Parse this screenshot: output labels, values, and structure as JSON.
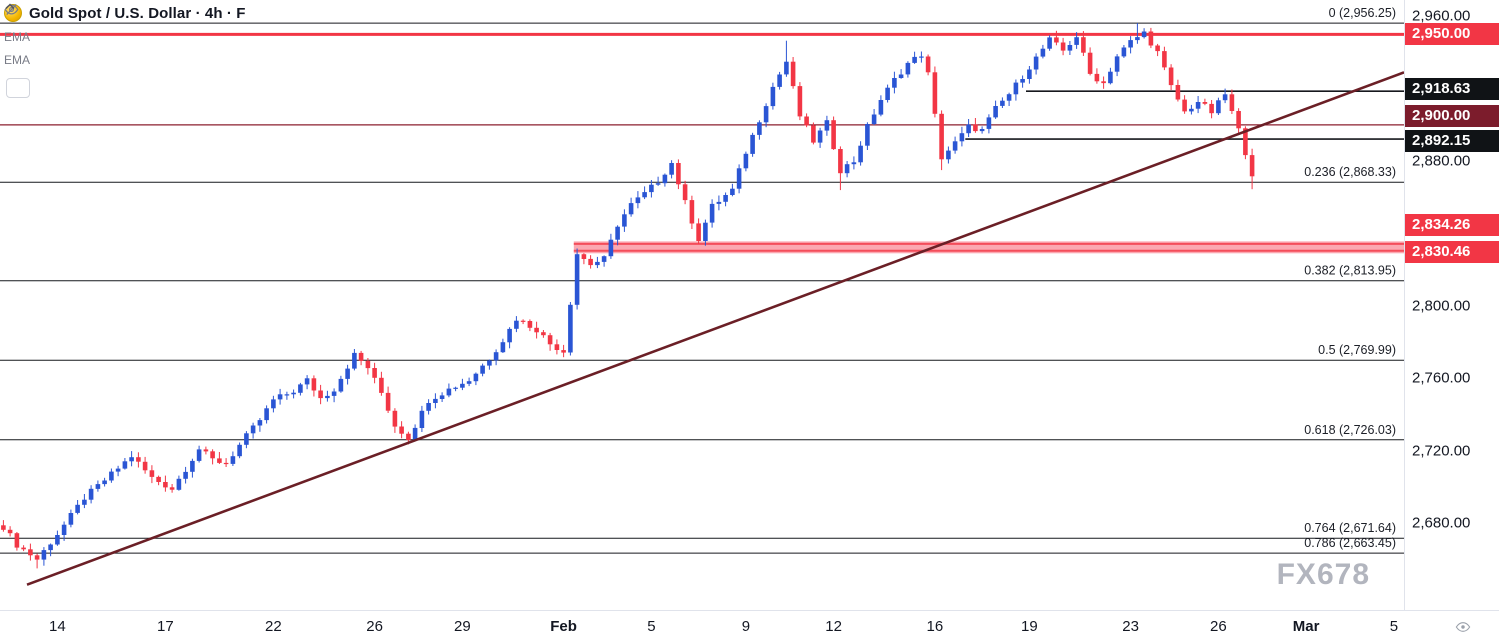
{
  "header": {
    "symbol_title": "Gold Spot / U.S. Dollar · 4h · F"
  },
  "legend": {
    "indicators": [
      {
        "label": "EMA",
        "hidden": true
      },
      {
        "label": "EMA",
        "hidden": true
      }
    ]
  },
  "watermark": "FX678",
  "colors": {
    "up": "#2a55d4",
    "down": "#f23645",
    "red_line": "#f23645",
    "maroon_line": "#8c1f2f",
    "black_line": "#16181d",
    "trend_line": "#6b1f26",
    "zone_fill": "rgba(247,82,99,0.5)",
    "zone_edge": "rgba(242,54,69,0.8)",
    "badge_red": "#f23645",
    "badge_black": "#101316",
    "badge_maroon": "#7c1c2c",
    "axis_text": "#131722",
    "muted": "#787b86"
  },
  "chart_data": {
    "type": "candlestick",
    "title": "Gold Spot / U.S. Dollar",
    "timeframe": "4h",
    "ylim": [
      2632,
      2969
    ],
    "x_slots": 208,
    "candle_count": 186,
    "x_axis": {
      "ticks": [
        {
          "label": "14",
          "slot": 8
        },
        {
          "label": "17",
          "slot": 24
        },
        {
          "label": "22",
          "slot": 40
        },
        {
          "label": "26",
          "slot": 55
        },
        {
          "label": "29",
          "slot": 68
        },
        {
          "label": "Feb",
          "slot": 83,
          "bold": true
        },
        {
          "label": "5",
          "slot": 96
        },
        {
          "label": "9",
          "slot": 110
        },
        {
          "label": "12",
          "slot": 123
        },
        {
          "label": "16",
          "slot": 138
        },
        {
          "label": "19",
          "slot": 152
        },
        {
          "label": "23",
          "slot": 167
        },
        {
          "label": "26",
          "slot": 180
        },
        {
          "label": "Mar",
          "slot": 193,
          "bold": true
        },
        {
          "label": "5",
          "slot": 206
        }
      ]
    },
    "y_axis": {
      "ticks": [
        {
          "label": "2,960.00",
          "price": 2960
        },
        {
          "label": "2,880.00",
          "price": 2880
        },
        {
          "label": "2,800.00",
          "price": 2800
        },
        {
          "label": "2,760.00",
          "price": 2760
        },
        {
          "label": "2,720.00",
          "price": 2720
        },
        {
          "label": "2,680.00",
          "price": 2680
        }
      ]
    },
    "price_badges": [
      {
        "label": "2,950.00",
        "bg_key": "badge_red",
        "y": 34
      },
      {
        "label": "2,918.63",
        "bg_key": "badge_black",
        "y": 89
      },
      {
        "label": "2,900.00",
        "bg_key": "badge_maroon",
        "y": 116
      },
      {
        "label": "2,892.15",
        "bg_key": "badge_black",
        "y": 141
      },
      {
        "label": "2,834.26",
        "bg_key": "badge_red",
        "y": 225
      },
      {
        "label": "2,830.46",
        "bg_key": "badge_red",
        "y": 252
      }
    ],
    "swings": [
      [
        0,
        2678
      ],
      [
        2,
        2668
      ],
      [
        5,
        2660
      ],
      [
        8,
        2674
      ],
      [
        12,
        2694
      ],
      [
        16,
        2707
      ],
      [
        19,
        2717
      ],
      [
        22,
        2705
      ],
      [
        25,
        2699
      ],
      [
        29,
        2721
      ],
      [
        31,
        2715
      ],
      [
        33,
        2713
      ],
      [
        36,
        2728
      ],
      [
        38,
        2737
      ],
      [
        40,
        2748
      ],
      [
        43,
        2753
      ],
      [
        45,
        2759
      ],
      [
        47,
        2749
      ],
      [
        49,
        2754
      ],
      [
        52,
        2773
      ],
      [
        54,
        2766
      ],
      [
        56,
        2752
      ],
      [
        58,
        2734
      ],
      [
        60,
        2727
      ],
      [
        63,
        2748
      ],
      [
        66,
        2754
      ],
      [
        69,
        2759
      ],
      [
        72,
        2771
      ],
      [
        74,
        2781
      ],
      [
        76,
        2793
      ],
      [
        79,
        2787
      ],
      [
        81,
        2779
      ],
      [
        83,
        2775
      ],
      [
        85,
        2829
      ],
      [
        87,
        2823
      ],
      [
        89,
        2826
      ],
      [
        91,
        2845
      ],
      [
        93,
        2856
      ],
      [
        95,
        2862
      ],
      [
        97,
        2869
      ],
      [
        99,
        2879
      ],
      [
        101,
        2857
      ],
      [
        103,
        2837
      ],
      [
        105,
        2855
      ],
      [
        108,
        2864
      ],
      [
        110,
        2885
      ],
      [
        112,
        2903
      ],
      [
        114,
        2921
      ],
      [
        116,
        2935
      ],
      [
        118,
        2905
      ],
      [
        120,
        2891
      ],
      [
        122,
        2901
      ],
      [
        124,
        2875
      ],
      [
        126,
        2880
      ],
      [
        128,
        2899
      ],
      [
        130,
        2914
      ],
      [
        132,
        2925
      ],
      [
        134,
        2934
      ],
      [
        136,
        2939
      ],
      [
        137,
        2928
      ],
      [
        139,
        2882
      ],
      [
        141,
        2890
      ],
      [
        143,
        2899
      ],
      [
        145,
        2897
      ],
      [
        147,
        2909
      ],
      [
        149,
        2917
      ],
      [
        151,
        2927
      ],
      [
        153,
        2937
      ],
      [
        155,
        2947
      ],
      [
        157,
        2941
      ],
      [
        159,
        2949
      ],
      [
        161,
        2928
      ],
      [
        163,
        2923
      ],
      [
        165,
        2938
      ],
      [
        167,
        2946
      ],
      [
        169,
        2951
      ],
      [
        171,
        2940
      ],
      [
        173,
        2921
      ],
      [
        175,
        2907
      ],
      [
        177,
        2913
      ],
      [
        179,
        2907
      ],
      [
        181,
        2917
      ],
      [
        183,
        2897
      ],
      [
        185,
        2873
      ]
    ],
    "extremes": [
      {
        "slot": 5,
        "low": 2655
      },
      {
        "slot": 60,
        "low": 2723.5
      },
      {
        "slot": 116,
        "high": 2946.5
      },
      {
        "slot": 124,
        "low": 2864
      },
      {
        "slot": 139,
        "low": 2875
      },
      {
        "slot": 156,
        "high": 2952
      },
      {
        "slot": 168,
        "high": 2956.25
      },
      {
        "slot": 185,
        "low": 2864.5
      }
    ],
    "fib_retracement": {
      "levels": [
        {
          "label": "0 (2,956.25)",
          "ratio": 0,
          "price": 2956.25
        },
        {
          "label": "0.236 (2,868.33)",
          "ratio": 0.236,
          "price": 2868.33
        },
        {
          "label": "0.382 (2,813.95)",
          "ratio": 0.382,
          "price": 2813.95
        },
        {
          "label": "0.5 (2,769.99)",
          "ratio": 0.5,
          "price": 2769.99
        },
        {
          "label": "0.618 (2,726.03)",
          "ratio": 0.618,
          "price": 2726.03
        },
        {
          "label": "0.764 (2,671.64)",
          "ratio": 0.764,
          "price": 2671.64
        },
        {
          "label": "0.786 (2,663.45)",
          "ratio": 0.786,
          "price": 2663.45
        }
      ]
    },
    "horizontal_lines": [
      {
        "price": 2950.0,
        "label": "2,950.00",
        "color_key": "red_line",
        "width": 3,
        "from_slot": 0
      },
      {
        "price": 2900.0,
        "label": "2,900.00",
        "color_key": "maroon_line",
        "width": 1.3,
        "from_slot": 0
      },
      {
        "price": 2918.63,
        "label": "2,918.63",
        "color_key": "black_line",
        "width": 1.6,
        "from_slot": 152
      },
      {
        "price": 2892.15,
        "label": "2,892.15",
        "color_key": "black_line",
        "width": 1.6,
        "from_slot": 143
      }
    ],
    "support_zone": {
      "top": 2834.26,
      "bottom": 2830.46,
      "from_slot": 85,
      "labels": [
        "2,834.26",
        "2,830.46"
      ]
    },
    "trend_line": {
      "from": [
        3.5,
        2646
      ],
      "to": [
        207.5,
        2929
      ]
    }
  }
}
